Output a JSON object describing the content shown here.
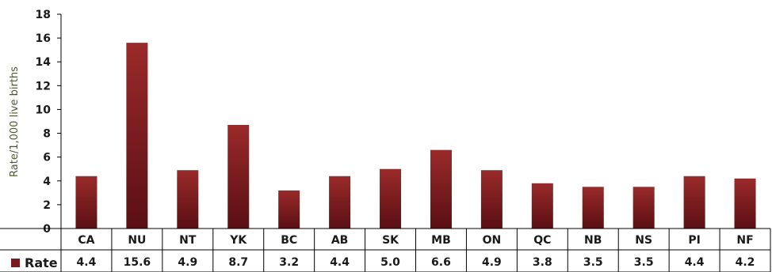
{
  "colors": {
    "bar_top": "#9a2a2a",
    "bar_bottom": "#5a0f14",
    "legend": "#7a1a1e"
  },
  "chart_data": {
    "type": "bar",
    "categories": [
      "CA",
      "NU",
      "NT",
      "YK",
      "BC",
      "AB",
      "SK",
      "MB",
      "ON",
      "QC",
      "NB",
      "NS",
      "PI",
      "NF"
    ],
    "series": [
      {
        "name": "Rate",
        "values": [
          4.4,
          15.6,
          4.9,
          8.7,
          3.2,
          4.4,
          5.0,
          6.6,
          4.9,
          3.8,
          3.5,
          3.5,
          4.4,
          4.2
        ]
      }
    ],
    "value_labels": [
      "4.4",
      "15.6",
      "4.9",
      "8.7",
      "3.2",
      "4.4",
      "5.0",
      "6.6",
      "4.9",
      "3.8",
      "3.5",
      "3.5",
      "4.4",
      "4.2"
    ],
    "ylabel": "Rate/1,000 live births",
    "ylim": [
      0,
      18
    ],
    "yticks": [
      0,
      2,
      4,
      6,
      8,
      10,
      12,
      14,
      16,
      18
    ],
    "grid": false,
    "legend": "bottom-left (data table)"
  }
}
